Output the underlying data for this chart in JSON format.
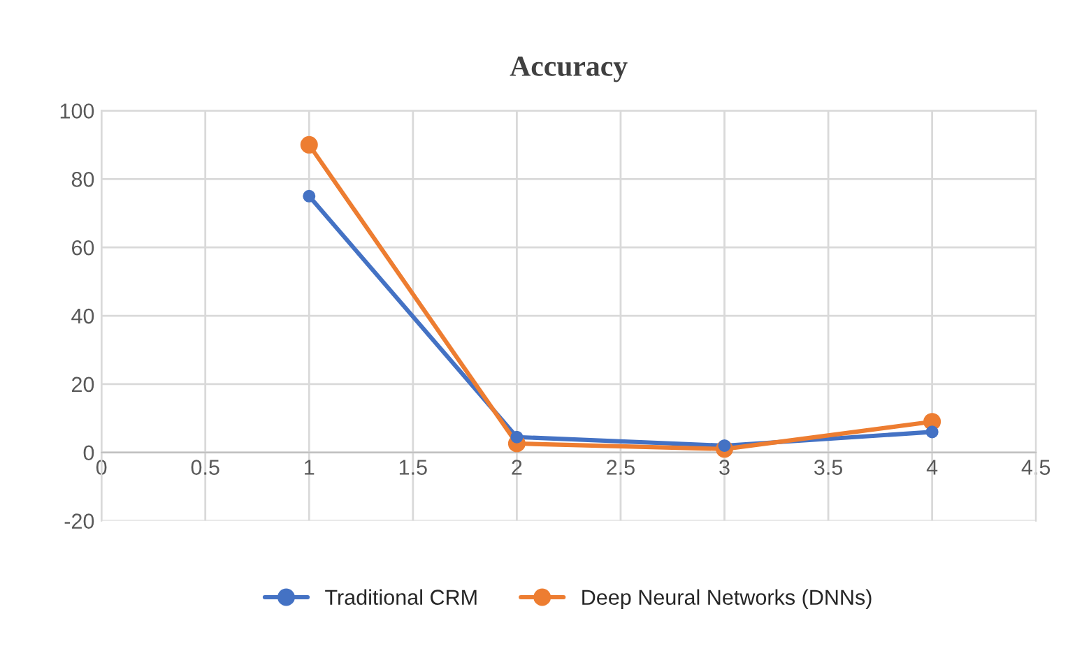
{
  "chart_data": {
    "type": "line",
    "title": "Accuracy",
    "x": [
      1,
      2,
      3,
      4
    ],
    "series": [
      {
        "name": "Traditional CRM",
        "color": "#4472c4",
        "values": [
          75,
          4.5,
          2,
          6
        ]
      },
      {
        "name": "Deep Neural Networks (DNNs)",
        "color": "#ed7d31",
        "values": [
          90,
          2.6,
          1,
          9
        ]
      }
    ],
    "xlim": [
      0,
      4.5
    ],
    "xticks": [
      0,
      0.5,
      1,
      1.5,
      2,
      2.5,
      3,
      3.5,
      4,
      4.5
    ],
    "ylim": [
      -20,
      100
    ],
    "yticks": [
      -20,
      0,
      20,
      40,
      60,
      80,
      100
    ],
    "grid": true,
    "legend": "bottom",
    "marker": "circle",
    "line_style": "solid"
  }
}
